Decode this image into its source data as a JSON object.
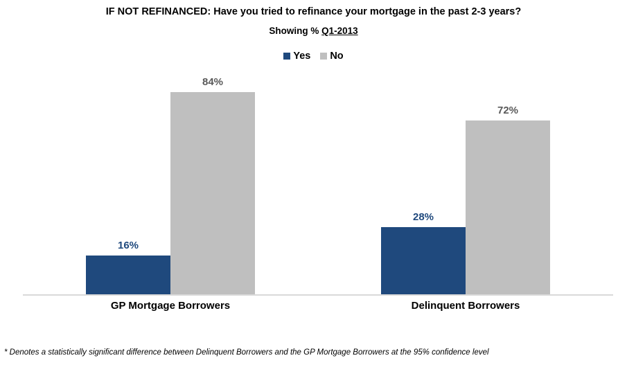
{
  "chart_data": {
    "type": "bar",
    "title": "IF NOT REFINANCED: Have you tried to refinance your mortgage in the past 2-3 years?",
    "subtitle": {
      "prefix": "Showing % ",
      "underlined": "Q1-2013"
    },
    "categories": [
      "GP Mortgage Borrowers",
      "Delinquent Borrowers"
    ],
    "series": [
      {
        "name": "Yes",
        "values": [
          16,
          28
        ],
        "color": "#1F497D",
        "label_color": "#1F497D"
      },
      {
        "name": "No",
        "values": [
          84,
          72
        ],
        "color": "#BFBFBF",
        "label_color": "#595959"
      }
    ],
    "value_suffix": "%",
    "ylim": [
      0,
      100
    ],
    "grid": false,
    "legend_position": "top",
    "xlabel": "",
    "ylabel": "",
    "footnote": "* Denotes a statistically significant difference between Delinquent Borrowers and the GP Mortgage Borrowers at the 95% confidence level"
  },
  "colors": {
    "axis_line": "#D9D9D9",
    "background": "#FFFFFF",
    "text": "#000000"
  }
}
